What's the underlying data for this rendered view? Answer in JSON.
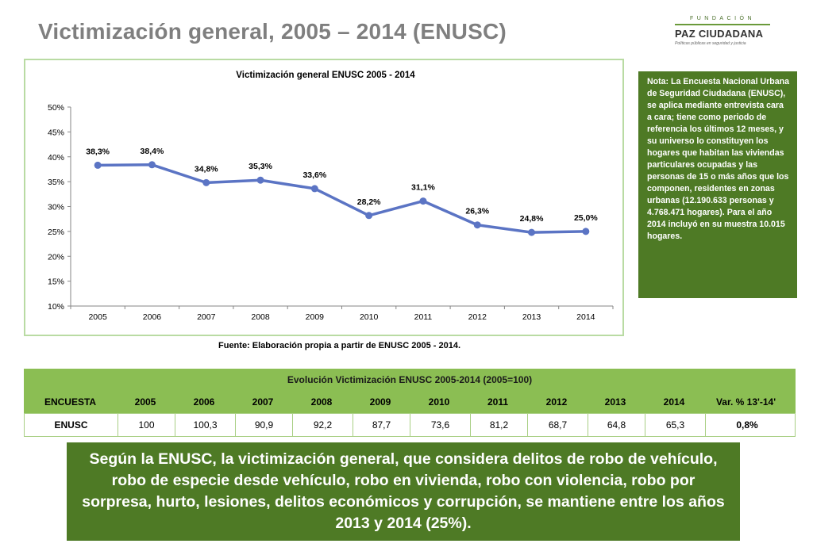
{
  "page": {
    "title": "Victimización general, 2005 – 2014 (ENUSC)",
    "logo": {
      "top": "FUNDACIÓN",
      "name": "PAZ CIUDADANA",
      "tagline": "Políticas públicas en seguridad y justicia"
    },
    "note": "Nota: La Encuesta Nacional Urbana de Seguridad Ciudadana (ENUSC), se aplica mediante entrevista cara a cara; tiene como periodo de referencia los últimos 12 meses, y su universo lo constituyen los hogares que habitan las viviendas particulares ocupadas y las personas de 15 o más años que los componen, residentes en zonas urbanas (12.190.633 personas y 4.768.471 hogares). Para el año 2014 incluyó en su muestra 10.015 hogares.",
    "source": "Fuente: Elaboración propia a partir de ENUSC 2005 - 2014.",
    "summary": "Según la ENUSC, la victimización general, que considera delitos de robo de vehículo, robo de especie desde vehículo, robo en vivienda, robo con violencia, robo por sorpresa, hurto, lesiones, delitos económicos y corrupción, se mantiene entre los años 2013 y 2014 (25%)."
  },
  "table": {
    "title": "Evolución Victimización ENUSC 2005-2014 (2005=100)",
    "headers": [
      "ENCUESTA",
      "2005",
      "2006",
      "2007",
      "2008",
      "2009",
      "2010",
      "2011",
      "2012",
      "2013",
      "2014",
      "Var. % 13'-14'"
    ],
    "rows": [
      [
        "ENUSC",
        "100",
        "100,3",
        "90,9",
        "92,2",
        "87,7",
        "73,6",
        "81,2",
        "68,7",
        "64,8",
        "65,3",
        "0,8%"
      ]
    ]
  },
  "chart_data": {
    "type": "line",
    "title": "Victimización general ENUSC 2005 - 2014",
    "categories": [
      "2005",
      "2006",
      "2007",
      "2008",
      "2009",
      "2010",
      "2011",
      "2012",
      "2013",
      "2014"
    ],
    "series": [
      {
        "values": [
          38.3,
          38.4,
          34.8,
          35.3,
          33.6,
          28.2,
          31.1,
          26.3,
          24.8,
          25.0
        ],
        "labels": [
          "38,3%",
          "38,4%",
          "34,8%",
          "35,3%",
          "33,6%",
          "28,2%",
          "31,1%",
          "26,3%",
          "24,8%",
          "25,0%"
        ]
      }
    ],
    "ylim": [
      10,
      50
    ],
    "yticks": [
      "10%",
      "15%",
      "20%",
      "25%",
      "30%",
      "35%",
      "40%",
      "45%",
      "50%"
    ],
    "grid": false,
    "colors": {
      "line": "#5b74c4"
    }
  }
}
